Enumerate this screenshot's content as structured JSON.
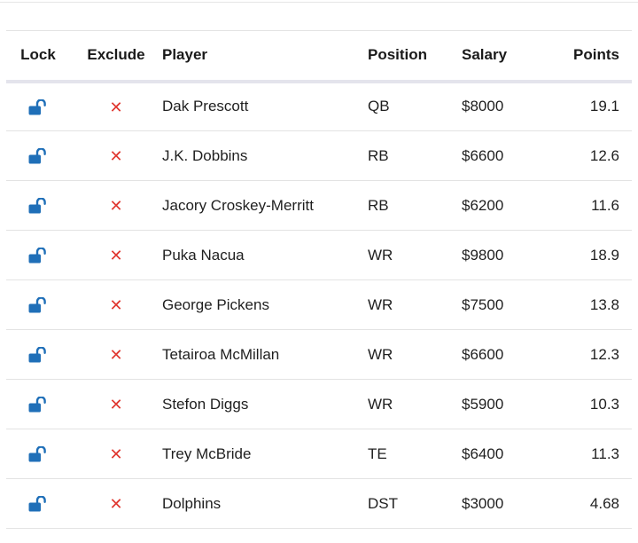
{
  "table": {
    "headers": {
      "lock": "Lock",
      "exclude": "Exclude",
      "player": "Player",
      "position": "Position",
      "salary": "Salary",
      "points": "Points"
    },
    "icons": {
      "lock": "unlocked-padlock-icon",
      "exclude": "x-icon"
    },
    "colors": {
      "lock": "#1f6fb8",
      "exclude": "#e0362f"
    },
    "exclude_glyph": "✕",
    "rows": [
      {
        "player": "Dak Prescott",
        "position": "QB",
        "salary": "$8000",
        "points": "19.1"
      },
      {
        "player": "J.K. Dobbins",
        "position": "RB",
        "salary": "$6600",
        "points": "12.6"
      },
      {
        "player": "Jacory Croskey-Merritt",
        "position": "RB",
        "salary": "$6200",
        "points": "11.6"
      },
      {
        "player": "Puka Nacua",
        "position": "WR",
        "salary": "$9800",
        "points": "18.9"
      },
      {
        "player": "George Pickens",
        "position": "WR",
        "salary": "$7500",
        "points": "13.8"
      },
      {
        "player": "Tetairoa McMillan",
        "position": "WR",
        "salary": "$6600",
        "points": "12.3"
      },
      {
        "player": "Stefon Diggs",
        "position": "WR",
        "salary": "$5900",
        "points": "10.3"
      },
      {
        "player": "Trey McBride",
        "position": "TE",
        "salary": "$6400",
        "points": "11.3"
      },
      {
        "player": "Dolphins",
        "position": "DST",
        "salary": "$3000",
        "points": "4.68"
      }
    ]
  }
}
